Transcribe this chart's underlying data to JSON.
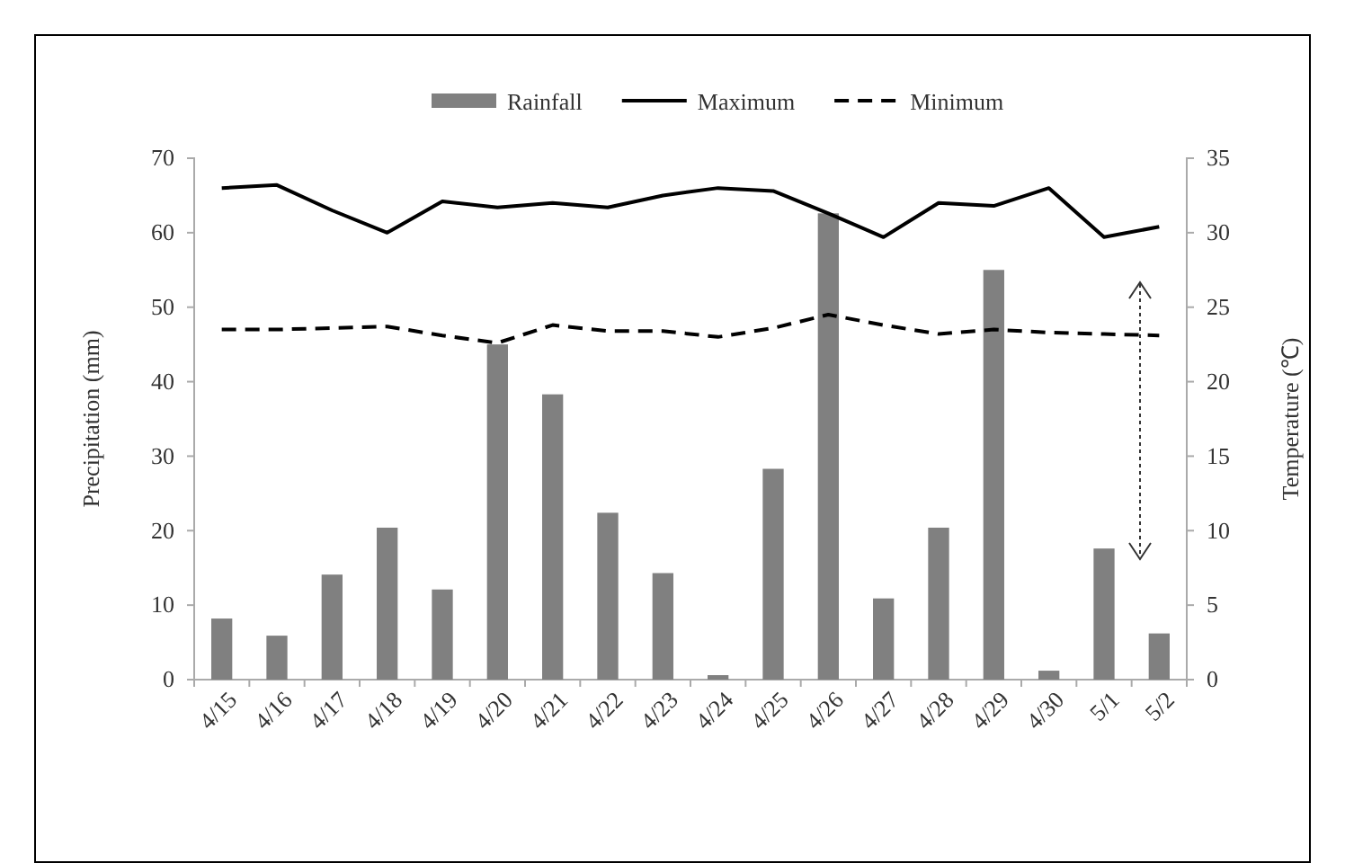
{
  "chart_data": {
    "type": "bar",
    "categories": [
      "4/15",
      "4/16",
      "4/17",
      "4/18",
      "4/19",
      "4/20",
      "4/21",
      "4/22",
      "4/23",
      "4/24",
      "4/25",
      "4/26",
      "4/27",
      "4/28",
      "4/29",
      "4/30",
      "5/1",
      "5/2"
    ],
    "series": [
      {
        "name": "Rainfall",
        "color": "#808080",
        "values": [
          8.2,
          5.9,
          14.1,
          20.4,
          12.1,
          45,
          38.3,
          22.4,
          14.3,
          0.6,
          28.3,
          62.6,
          10.9,
          20.4,
          55,
          1.2,
          17.6,
          6.2
        ]
      },
      {
        "name": "Maximum",
        "type": "line",
        "axis": "y2",
        "color": "#000000",
        "line_style": "solid",
        "values": [
          33,
          33.2,
          31.5,
          30,
          32.1,
          31.7,
          32,
          31.7,
          32.5,
          33,
          32.8,
          31.3,
          29.7,
          32,
          31.8,
          33,
          29.7,
          30.4
        ]
      },
      {
        "name": "Minimum",
        "type": "line",
        "axis": "y2",
        "color": "#000000",
        "line_style": "dashed",
        "values": [
          23.5,
          23.5,
          23.6,
          23.7,
          23.1,
          22.6,
          23.8,
          23.4,
          23.4,
          23,
          23.6,
          24.5,
          23.8,
          23.2,
          23.5,
          23.3,
          23.2,
          23.1
        ]
      }
    ],
    "ylabel": "Precipitation (mm)",
    "y2label": "Temperature (℃)",
    "ylim": [
      0,
      70
    ],
    "yticks": [
      0,
      10,
      20,
      30,
      40,
      50,
      60,
      70
    ],
    "y2lim": [
      0,
      35
    ],
    "y2ticks": [
      0,
      5,
      10,
      15,
      20,
      25,
      30,
      35
    ],
    "grid": false,
    "legend": "top",
    "marker": "none"
  }
}
